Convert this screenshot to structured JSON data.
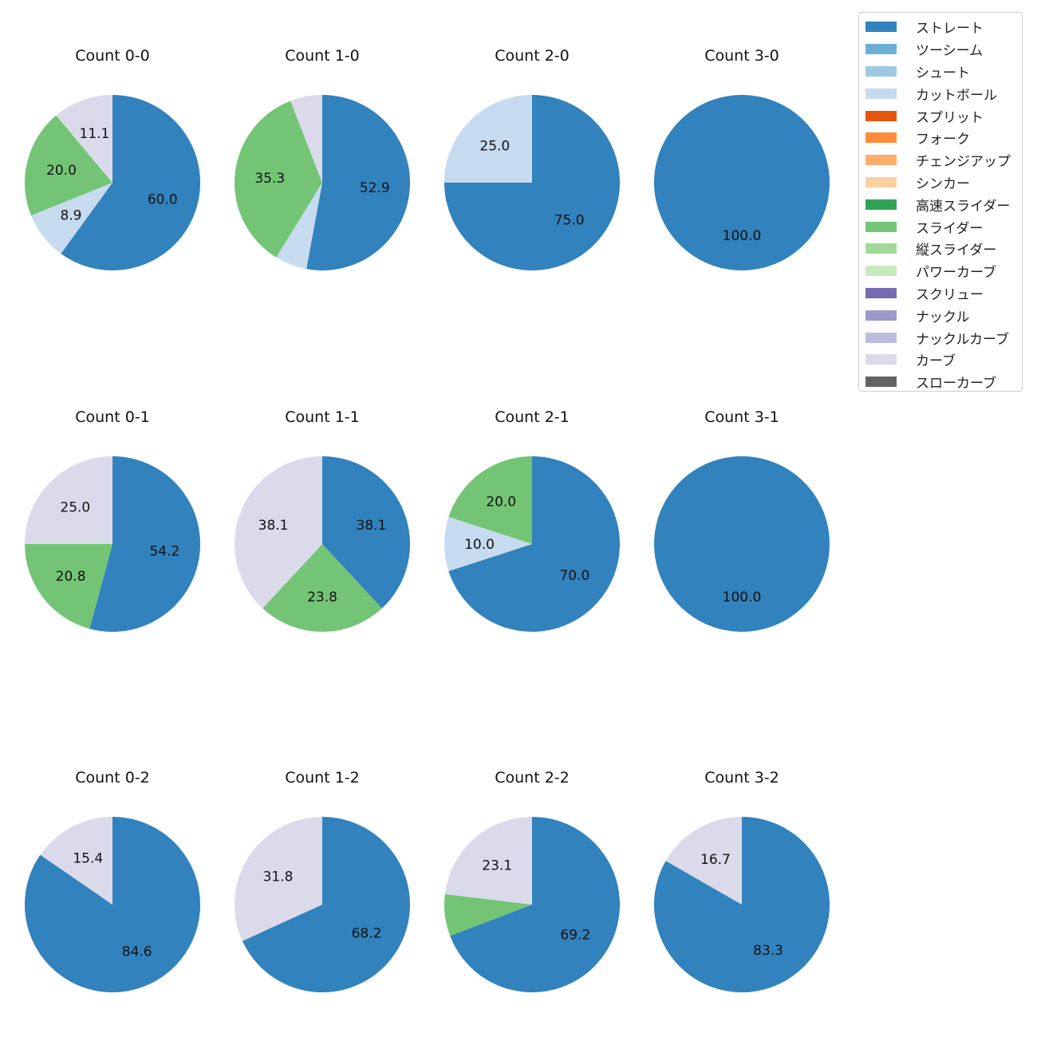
{
  "chart_data": {
    "type": "pie",
    "legend_position": "top-right",
    "categories": [
      "ストレート",
      "ツーシーム",
      "シュート",
      "カットボール",
      "スプリット",
      "フォーク",
      "チェンジアップ",
      "シンカー",
      "高速スライダー",
      "スライダー",
      "縦スライダー",
      "パワーカーブ",
      "スクリュー",
      "ナックル",
      "ナックルカーブ",
      "カーブ",
      "スローカーブ"
    ],
    "colors": [
      "#3182bd",
      "#6baed6",
      "#9ecae1",
      "#c6dbef",
      "#e6550d",
      "#fd8d3c",
      "#fdae6b",
      "#fdd0a2",
      "#31a354",
      "#74c476",
      "#a1d99b",
      "#c7e9c0",
      "#756bb1",
      "#9e9ac8",
      "#bcbddc",
      "#dadaeb",
      "#636363"
    ],
    "pies": [
      {
        "title": "Count 0-0",
        "slices": [
          {
            "category": "ストレート",
            "value": 60.0,
            "label": "60.0"
          },
          {
            "category": "カットボール",
            "value": 8.9,
            "label": "8.9"
          },
          {
            "category": "スライダー",
            "value": 20.0,
            "label": "20.0"
          },
          {
            "category": "カーブ",
            "value": 11.1,
            "label": "11.1"
          }
        ]
      },
      {
        "title": "Count 1-0",
        "slices": [
          {
            "category": "ストレート",
            "value": 52.9,
            "label": "52.9"
          },
          {
            "category": "カットボール",
            "value": 5.9,
            "label": null
          },
          {
            "category": "スライダー",
            "value": 35.3,
            "label": "35.3"
          },
          {
            "category": "カーブ",
            "value": 5.9,
            "label": null
          }
        ]
      },
      {
        "title": "Count 2-0",
        "slices": [
          {
            "category": "ストレート",
            "value": 75.0,
            "label": "75.0"
          },
          {
            "category": "カットボール",
            "value": 25.0,
            "label": "25.0"
          }
        ]
      },
      {
        "title": "Count 3-0",
        "slices": [
          {
            "category": "ストレート",
            "value": 100.0,
            "label": "100.0"
          }
        ]
      },
      {
        "title": "Count 0-1",
        "slices": [
          {
            "category": "ストレート",
            "value": 54.2,
            "label": "54.2"
          },
          {
            "category": "スライダー",
            "value": 20.8,
            "label": "20.8"
          },
          {
            "category": "カーブ",
            "value": 25.0,
            "label": "25.0"
          }
        ]
      },
      {
        "title": "Count 1-1",
        "slices": [
          {
            "category": "ストレート",
            "value": 38.1,
            "label": "38.1"
          },
          {
            "category": "スライダー",
            "value": 23.8,
            "label": "23.8"
          },
          {
            "category": "カーブ",
            "value": 38.1,
            "label": "38.1"
          }
        ]
      },
      {
        "title": "Count 2-1",
        "slices": [
          {
            "category": "ストレート",
            "value": 70.0,
            "label": "70.0"
          },
          {
            "category": "カットボール",
            "value": 10.0,
            "label": "10.0"
          },
          {
            "category": "スライダー",
            "value": 20.0,
            "label": "20.0"
          }
        ]
      },
      {
        "title": "Count 3-1",
        "slices": [
          {
            "category": "ストレート",
            "value": 100.0,
            "label": "100.0"
          }
        ]
      },
      {
        "title": "Count 0-2",
        "slices": [
          {
            "category": "ストレート",
            "value": 84.6,
            "label": "84.6"
          },
          {
            "category": "カーブ",
            "value": 15.4,
            "label": "15.4"
          }
        ]
      },
      {
        "title": "Count 1-2",
        "slices": [
          {
            "category": "ストレート",
            "value": 68.2,
            "label": "68.2"
          },
          {
            "category": "カーブ",
            "value": 31.8,
            "label": "31.8"
          }
        ]
      },
      {
        "title": "Count 2-2",
        "slices": [
          {
            "category": "ストレート",
            "value": 69.2,
            "label": "69.2"
          },
          {
            "category": "スライダー",
            "value": 7.7,
            "label": null
          },
          {
            "category": "カーブ",
            "value": 23.1,
            "label": "23.1"
          }
        ]
      },
      {
        "title": "Count 3-2",
        "slices": [
          {
            "category": "ストレート",
            "value": 83.3,
            "label": "83.3"
          },
          {
            "category": "カーブ",
            "value": 16.7,
            "label": "16.7"
          }
        ]
      }
    ]
  }
}
